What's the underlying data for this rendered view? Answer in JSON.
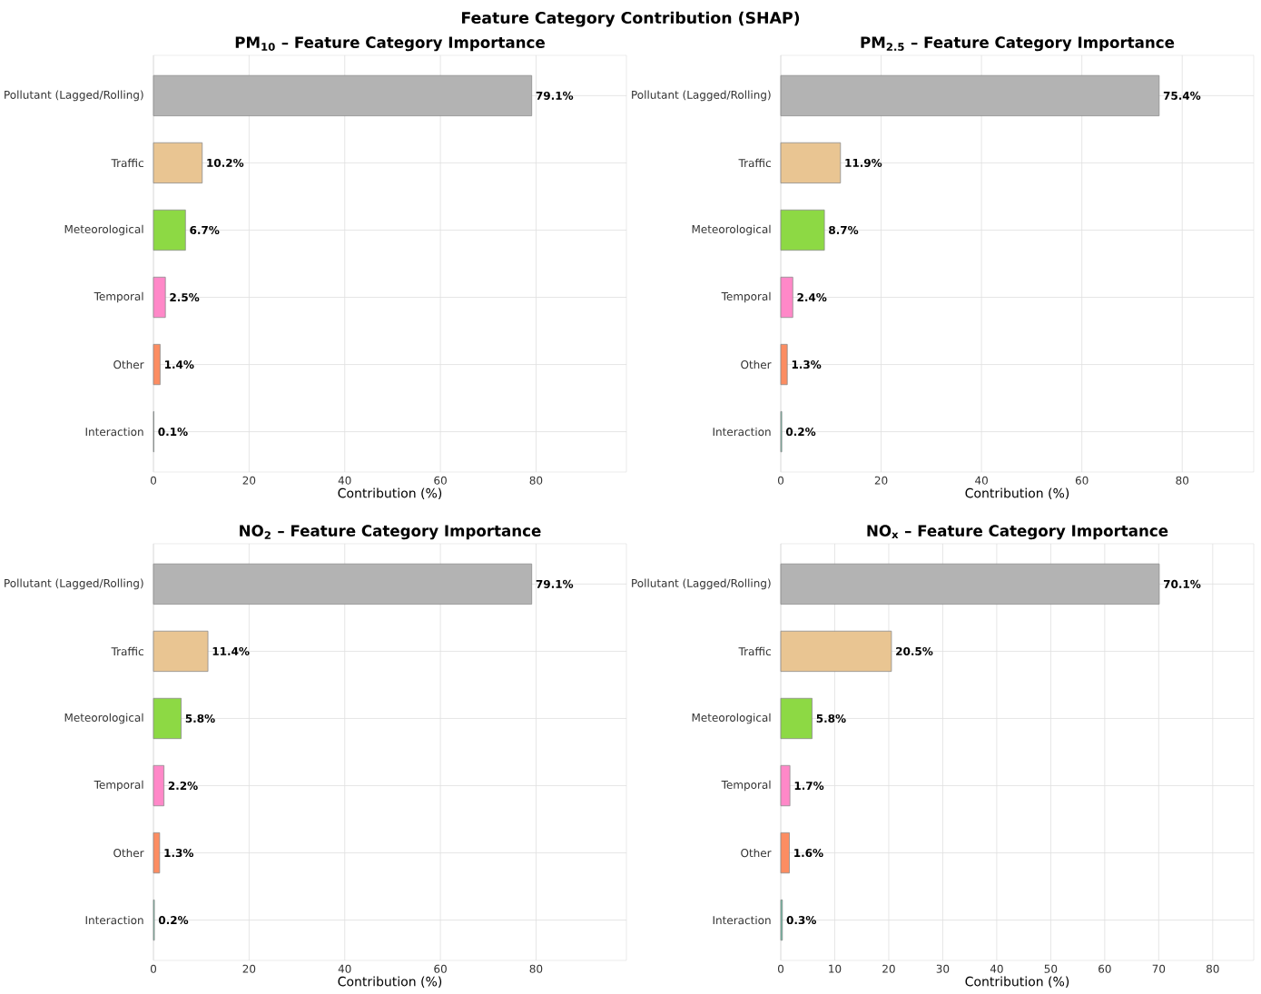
{
  "chart_data": [
    {
      "type": "bar",
      "orientation": "horizontal",
      "title": "PM$_{10}$ – Feature Category Importance",
      "annotations": [
        "Feature Category Contribution (SHAP)"
      ],
      "xlabel": "Contribution (%)",
      "categories": [
        "Pollutant (Lagged/Rolling)",
        "Traffic",
        "Meteorological",
        "Temporal",
        "Other",
        "Interaction"
      ],
      "values": [
        79.1,
        10.2,
        6.7,
        2.5,
        1.4,
        0.1
      ],
      "value_labels": [
        "79.1%",
        "10.2%",
        "6.7%",
        "2.5%",
        "1.4%",
        "0.1%"
      ],
      "colors": [
        "#b3b3b3",
        "#e9c592",
        "#8dd944",
        "#ff88c8",
        "#fc8d62",
        "#66c2a5"
      ],
      "xlim": [
        0,
        98.9
      ],
      "xticks": [
        0,
        20,
        40,
        60,
        80
      ],
      "grid": true
    },
    {
      "type": "bar",
      "orientation": "horizontal",
      "title": "PM$_{2.5}$ – Feature Category Importance",
      "xlabel": "Contribution (%)",
      "categories": [
        "Pollutant (Lagged/Rolling)",
        "Traffic",
        "Meteorological",
        "Temporal",
        "Other",
        "Interaction"
      ],
      "values": [
        75.4,
        11.9,
        8.7,
        2.4,
        1.3,
        0.2
      ],
      "value_labels": [
        "75.4%",
        "11.9%",
        "8.7%",
        "2.4%",
        "1.3%",
        "0.2%"
      ],
      "colors": [
        "#b3b3b3",
        "#e9c592",
        "#8dd944",
        "#ff88c8",
        "#fc8d62",
        "#66c2a5"
      ],
      "xlim": [
        0,
        94.25
      ],
      "xticks": [
        0,
        20,
        40,
        60,
        80
      ],
      "grid": true
    },
    {
      "type": "bar",
      "orientation": "horizontal",
      "title": "NO$_{2}$ – Feature Category Importance",
      "xlabel": "Contribution (%)",
      "categories": [
        "Pollutant (Lagged/Rolling)",
        "Traffic",
        "Meteorological",
        "Temporal",
        "Other",
        "Interaction"
      ],
      "values": [
        79.1,
        11.4,
        5.8,
        2.2,
        1.3,
        0.2
      ],
      "value_labels": [
        "79.1%",
        "11.4%",
        "5.8%",
        "2.2%",
        "1.3%",
        "0.2%"
      ],
      "colors": [
        "#b3b3b3",
        "#e9c592",
        "#8dd944",
        "#ff88c8",
        "#fc8d62",
        "#66c2a5"
      ],
      "xlim": [
        0,
        98.9
      ],
      "xticks": [
        0,
        20,
        40,
        60,
        80
      ],
      "grid": true
    },
    {
      "type": "bar",
      "orientation": "horizontal",
      "title": "NO$_{x}$ – Feature Category Importance",
      "xlabel": "Contribution (%)",
      "categories": [
        "Pollutant (Lagged/Rolling)",
        "Traffic",
        "Meteorological",
        "Temporal",
        "Other",
        "Interaction"
      ],
      "values": [
        70.1,
        20.5,
        5.8,
        1.7,
        1.6,
        0.3
      ],
      "value_labels": [
        "70.1%",
        "20.5%",
        "5.8%",
        "1.7%",
        "1.6%",
        "0.3%"
      ],
      "colors": [
        "#b3b3b3",
        "#e9c592",
        "#8dd944",
        "#ff88c8",
        "#fc8d62",
        "#66c2a5"
      ],
      "xlim": [
        0,
        87.6
      ],
      "xticks": [
        0,
        10,
        20,
        30,
        40,
        50,
        60,
        70,
        80
      ],
      "grid": true
    }
  ]
}
